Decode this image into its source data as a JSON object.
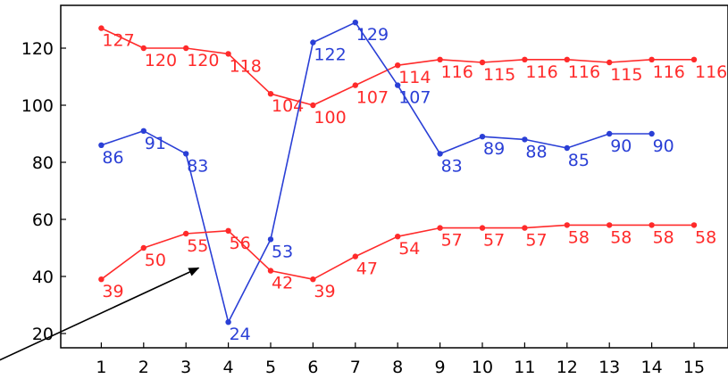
{
  "chart_data": {
    "type": "line",
    "title": "",
    "xlabel": "",
    "ylabel": "",
    "x": [
      1,
      2,
      3,
      4,
      5,
      6,
      7,
      8,
      9,
      10,
      11,
      12,
      13,
      14,
      15
    ],
    "xlim": [
      0,
      15.5
    ],
    "ylim": [
      15,
      135
    ],
    "yticks": [
      20,
      40,
      60,
      80,
      100,
      120
    ],
    "grid": false,
    "legend": "none",
    "series": [
      {
        "color": "#ff2a2a",
        "x": [
          1,
          2,
          3,
          4,
          5,
          6,
          7,
          8,
          9,
          10,
          11,
          12,
          13,
          14,
          15
        ],
        "values": [
          127,
          120,
          120,
          118,
          104,
          100,
          107,
          114,
          116,
          115,
          116,
          116,
          115,
          116,
          116
        ]
      },
      {
        "color": "#2a3fd6",
        "x": [
          1,
          2,
          3,
          4,
          5,
          6,
          7,
          8,
          9,
          10,
          11,
          12,
          13,
          14
        ],
        "values": [
          86,
          91,
          83,
          24,
          53,
          122,
          129,
          107,
          83,
          89,
          88,
          85,
          90,
          90
        ]
      },
      {
        "color": "#ff2a2a",
        "x": [
          1,
          2,
          3,
          4,
          5,
          6,
          7,
          8,
          9,
          10,
          11,
          12,
          13,
          14,
          15
        ],
        "values": [
          39,
          50,
          55,
          56,
          42,
          39,
          47,
          54,
          57,
          57,
          57,
          58,
          58,
          58,
          58
        ]
      }
    ],
    "annotations": [
      {
        "type": "arrow",
        "from": [
          -1.5,
          10
        ],
        "to": [
          3.3,
          43
        ],
        "color": "#000000"
      }
    ]
  }
}
